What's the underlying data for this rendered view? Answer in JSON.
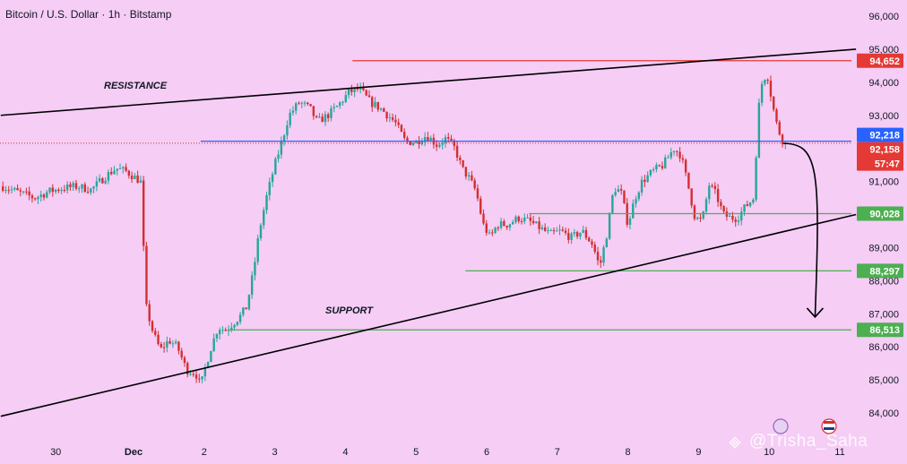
{
  "header": {
    "title": "Bitcoin / U.S. Dollar · 1h · Bitstamp"
  },
  "annotations": {
    "resistance": "RESISTANCE",
    "support": "SUPPORT",
    "countdown": "57:47",
    "watermark": "@Trisha_Saha"
  },
  "colors": {
    "background": "#f5cdf5",
    "up": "#26a69a",
    "down": "#d32f2f",
    "resistance_line": "#e53935",
    "support_line": "#4caf50",
    "price_line": "#2962ff",
    "trend_line": "#000000"
  },
  "chart_data": {
    "type": "candlestick",
    "title": "Bitcoin / U.S. Dollar · 1h · Bitstamp",
    "ylim": [
      83400,
      96300
    ],
    "y_ticks": [
      84000,
      85000,
      86000,
      87000,
      88000,
      89000,
      90000,
      91000,
      92000,
      93000,
      94000,
      95000,
      96000
    ],
    "y_tick_labels": [
      "84,000",
      "85,000",
      "86,000",
      "87,000",
      "88,000",
      "89,000",
      "90,000",
      "91,000",
      "92,000",
      "93,000",
      "94,000",
      "95,000",
      "96,000"
    ],
    "x_tick_labels": [
      "30",
      "Dec",
      "2",
      "3",
      "4",
      "5",
      "6",
      "7",
      "8",
      "9",
      "10",
      "11"
    ],
    "x_ticks_day": [
      -1,
      0,
      1,
      2,
      3,
      4,
      5,
      6,
      7,
      8,
      9,
      10
    ],
    "x_range_day": [
      -1.88,
      10.23
    ],
    "price_labels": [
      {
        "value": 94652,
        "text": "94,652",
        "color": "#e53935"
      },
      {
        "value": 92218,
        "text": "92,218",
        "color": "#2962ff"
      },
      {
        "value": 92158,
        "text": "92,158",
        "color": "#e53935"
      },
      {
        "value": 90028,
        "text": "90,028",
        "color": "#4caf50"
      },
      {
        "value": 88297,
        "text": "88,297",
        "color": "#4caf50"
      },
      {
        "value": 86513,
        "text": "86,513",
        "color": "#4caf50"
      }
    ],
    "horizontal_levels": [
      {
        "value": 94652,
        "from_day": 3.1,
        "color": "#e53935"
      },
      {
        "value": 92218,
        "from_day": 0.95,
        "color": "#2962ff"
      },
      {
        "value": 90028,
        "from_day": 5.6,
        "color": "#4caf50"
      },
      {
        "value": 88297,
        "from_day": 4.7,
        "color": "#4caf50"
      },
      {
        "value": 86513,
        "from_day": 1.35,
        "color": "#4caf50"
      }
    ],
    "trend_lines": [
      {
        "name": "resistance",
        "from": [
          -1.88,
          93000
        ],
        "to": [
          10.23,
          95000
        ]
      },
      {
        "name": "support",
        "from": [
          -1.88,
          83900
        ],
        "to": [
          10.23,
          90000
        ]
      }
    ],
    "forecast_arrow": {
      "from": [
        9.2,
        92150
      ],
      "to": [
        9.65,
        86900
      ]
    },
    "ohlc_close_path": [
      [
        -1.85,
        90850
      ],
      [
        -1.6,
        90650
      ],
      [
        -1.4,
        90500
      ],
      [
        -1.2,
        90700
      ],
      [
        -1.0,
        90800
      ],
      [
        -0.8,
        90850
      ],
      [
        -0.6,
        90750
      ],
      [
        -0.4,
        91150
      ],
      [
        -0.25,
        91400
      ],
      [
        -0.1,
        91300
      ],
      [
        0.1,
        91000
      ],
      [
        0.13,
        89500
      ],
      [
        0.18,
        87200
      ],
      [
        0.28,
        86400
      ],
      [
        0.38,
        85900
      ],
      [
        0.5,
        86200
      ],
      [
        0.62,
        86000
      ],
      [
        0.75,
        85300
      ],
      [
        0.88,
        85200
      ],
      [
        0.95,
        84800
      ],
      [
        1.02,
        85400
      ],
      [
        1.1,
        86000
      ],
      [
        1.2,
        86600
      ],
      [
        1.3,
        86500
      ],
      [
        1.4,
        86700
      ],
      [
        1.5,
        86900
      ],
      [
        1.6,
        87200
      ],
      [
        1.7,
        88300
      ],
      [
        1.78,
        89500
      ],
      [
        1.88,
        90500
      ],
      [
        2.0,
        91500
      ],
      [
        2.1,
        92200
      ],
      [
        2.2,
        93000
      ],
      [
        2.35,
        93400
      ],
      [
        2.5,
        93200
      ],
      [
        2.6,
        92800
      ],
      [
        2.75,
        93000
      ],
      [
        2.9,
        93300
      ],
      [
        3.05,
        93700
      ],
      [
        3.2,
        93800
      ],
      [
        3.35,
        93400
      ],
      [
        3.5,
        93200
      ],
      [
        3.6,
        93000
      ],
      [
        3.7,
        92800
      ],
      [
        3.85,
        92200
      ],
      [
        4.0,
        92200
      ],
      [
        4.15,
        92400
      ],
      [
        4.3,
        92100
      ],
      [
        4.42,
        92300
      ],
      [
        4.55,
        92000
      ],
      [
        4.65,
        91400
      ],
      [
        4.75,
        91100
      ],
      [
        4.85,
        90700
      ],
      [
        4.95,
        89700
      ],
      [
        5.05,
        89300
      ],
      [
        5.15,
        89700
      ],
      [
        5.3,
        89700
      ],
      [
        5.45,
        89900
      ],
      [
        5.6,
        89800
      ],
      [
        5.75,
        89600
      ],
      [
        5.9,
        89400
      ],
      [
        6.05,
        89500
      ],
      [
        6.2,
        89300
      ],
      [
        6.35,
        89500
      ],
      [
        6.5,
        89100
      ],
      [
        6.6,
        88400
      ],
      [
        6.7,
        89400
      ],
      [
        6.8,
        90800
      ],
      [
        6.9,
        90700
      ],
      [
        7.0,
        89700
      ],
      [
        7.1,
        90500
      ],
      [
        7.2,
        91000
      ],
      [
        7.35,
        91300
      ],
      [
        7.5,
        91500
      ],
      [
        7.65,
        92000
      ],
      [
        7.75,
        91800
      ],
      [
        7.85,
        90900
      ],
      [
        7.95,
        89900
      ],
      [
        8.05,
        89800
      ],
      [
        8.15,
        90900
      ],
      [
        8.25,
        90600
      ],
      [
        8.35,
        90000
      ],
      [
        8.45,
        89900
      ],
      [
        8.55,
        89900
      ],
      [
        8.65,
        90200
      ],
      [
        8.78,
        90500
      ],
      [
        8.85,
        93200
      ],
      [
        8.9,
        94000
      ],
      [
        8.97,
        94300
      ],
      [
        9.05,
        93300
      ],
      [
        9.12,
        92600
      ],
      [
        9.2,
        92200
      ],
      [
        9.27,
        92158
      ]
    ]
  }
}
